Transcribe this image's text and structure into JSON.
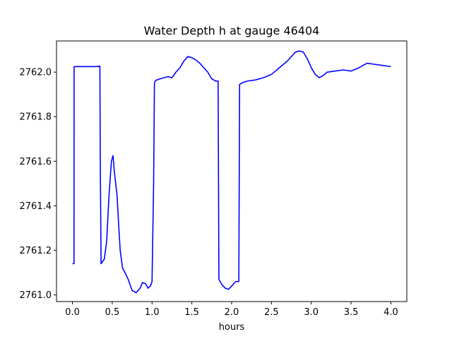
{
  "chart_data": {
    "type": "line",
    "title": "Water Depth h at gauge 46404",
    "xlabel": "hours",
    "ylabel": "",
    "xlim": [
      -0.2,
      4.2
    ],
    "ylim": [
      2760.97,
      2762.14
    ],
    "xticks": [
      0.0,
      0.5,
      1.0,
      1.5,
      2.0,
      2.5,
      3.0,
      3.5,
      4.0
    ],
    "xtick_labels": [
      "0.0",
      "0.5",
      "1.0",
      "1.5",
      "2.0",
      "2.5",
      "3.0",
      "3.5",
      "4.0"
    ],
    "yticks": [
      2761.0,
      2761.2,
      2761.4,
      2761.6,
      2761.8,
      2762.0
    ],
    "ytick_labels": [
      "2761.0",
      "2761.2",
      "2761.4",
      "2761.6",
      "2761.8",
      "2762.0"
    ],
    "grid": false,
    "series": [
      {
        "color": "#0000ff",
        "x": [
          0.0,
          0.02,
          0.021,
          0.1,
          0.2,
          0.3,
          0.345,
          0.35,
          0.36,
          0.4,
          0.43,
          0.46,
          0.49,
          0.51,
          0.525,
          0.54,
          0.56,
          0.58,
          0.6,
          0.63,
          0.66,
          0.7,
          0.75,
          0.8,
          0.85,
          0.88,
          0.92,
          0.95,
          0.98,
          1.0,
          1.02,
          1.03,
          1.04,
          1.06,
          1.1,
          1.15,
          1.2,
          1.25,
          1.3,
          1.35,
          1.4,
          1.45,
          1.5,
          1.55,
          1.6,
          1.65,
          1.7,
          1.75,
          1.8,
          1.83,
          1.835,
          1.84,
          1.88,
          1.92,
          1.96,
          2.0,
          2.05,
          2.09,
          2.095,
          2.1,
          2.15,
          2.2,
          2.3,
          2.4,
          2.5,
          2.6,
          2.7,
          2.8,
          2.85,
          2.9,
          2.95,
          3.0,
          3.05,
          3.1,
          3.15,
          3.2,
          3.3,
          3.4,
          3.5,
          3.6,
          3.7,
          3.8,
          3.9,
          4.0
        ],
        "y": [
          2761.14,
          2761.14,
          2762.025,
          2762.025,
          2762.025,
          2762.025,
          2762.027,
          2761.6,
          2761.14,
          2761.16,
          2761.24,
          2761.45,
          2761.6,
          2761.625,
          2761.56,
          2761.51,
          2761.45,
          2761.32,
          2761.2,
          2761.12,
          2761.1,
          2761.07,
          2761.02,
          2761.01,
          2761.03,
          2761.055,
          2761.05,
          2761.03,
          2761.04,
          2761.06,
          2761.5,
          2761.95,
          2761.96,
          2761.965,
          2761.97,
          2761.975,
          2761.98,
          2761.975,
          2762.0,
          2762.02,
          2762.05,
          2762.07,
          2762.065,
          2762.055,
          2762.04,
          2762.02,
          2762.0,
          2761.97,
          2761.96,
          2761.96,
          2761.5,
          2761.07,
          2761.045,
          2761.03,
          2761.025,
          2761.04,
          2761.06,
          2761.06,
          2761.5,
          2761.945,
          2761.955,
          2761.96,
          2761.965,
          2761.975,
          2761.99,
          2762.02,
          2762.05,
          2762.09,
          2762.095,
          2762.09,
          2762.06,
          2762.02,
          2761.99,
          2761.975,
          2761.985,
          2762.0,
          2762.005,
          2762.01,
          2762.005,
          2762.02,
          2762.04,
          2762.035,
          2762.03,
          2762.025
        ]
      }
    ]
  }
}
